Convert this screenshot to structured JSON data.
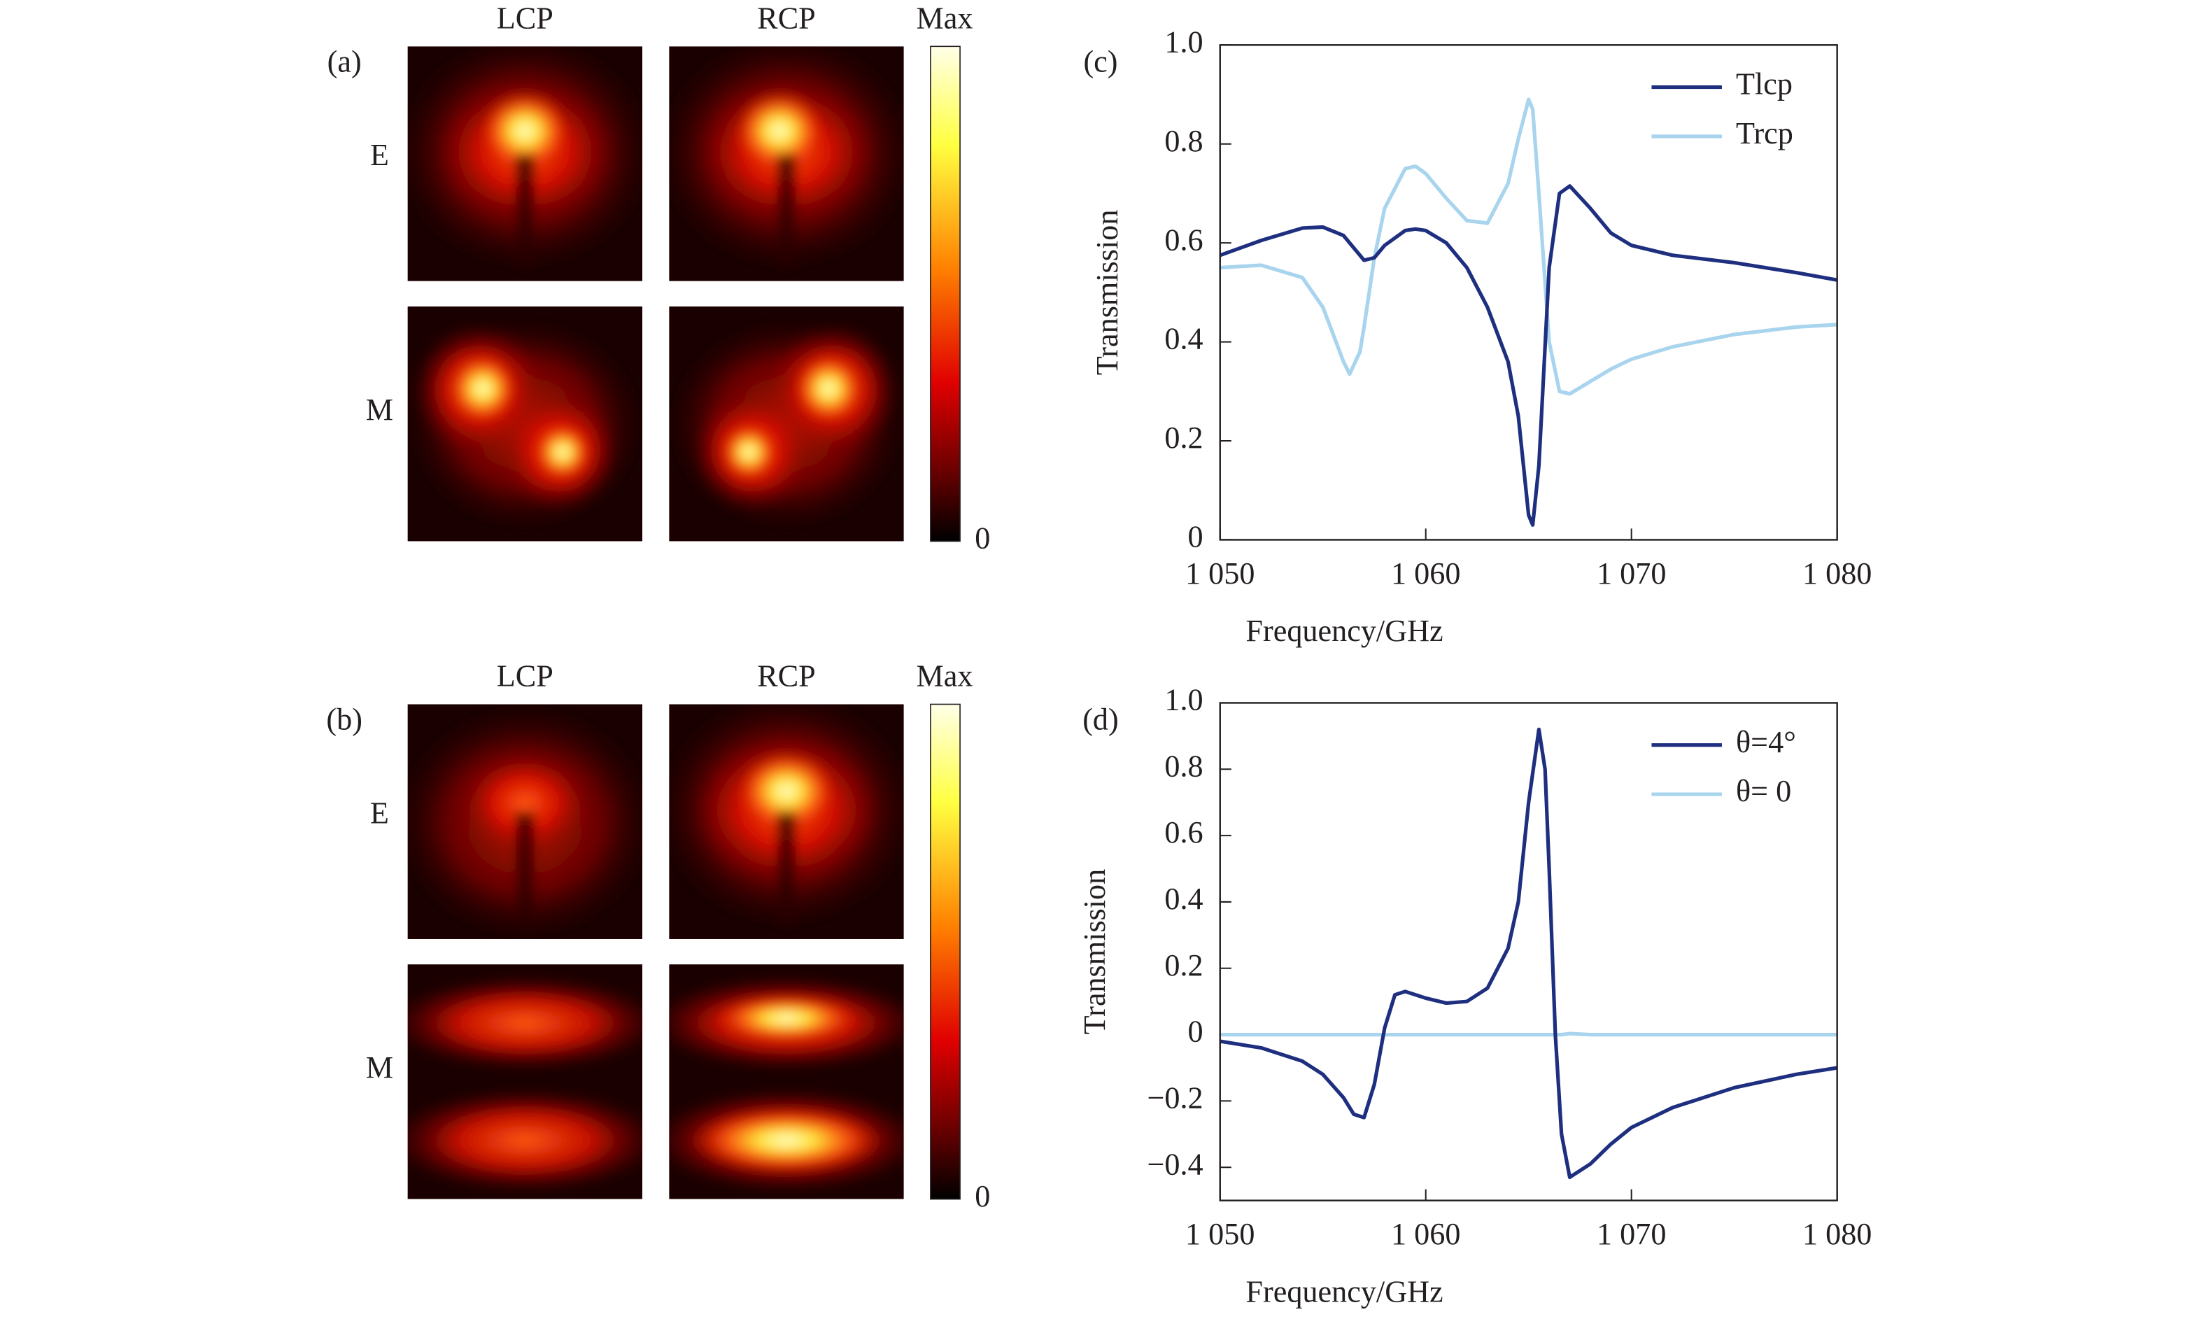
{
  "figure_panels": [
    {
      "label": "(a)",
      "columns": [
        "LCP",
        "RCP"
      ],
      "rows": [
        "E",
        "M"
      ],
      "colorbar_labels": [
        "Max",
        0
      ]
    },
    {
      "label": "(b)",
      "columns": [
        "LCP",
        "RCP"
      ],
      "rows": [
        "E",
        "M"
      ],
      "colorbar_labels": [
        "Max",
        0
      ]
    }
  ],
  "chart_data": [
    {
      "type": "line",
      "panel_label": "(c)",
      "x_label": "Frequency/GHz",
      "y_label": "Transmission",
      "x": [
        1050,
        1052,
        1054,
        1055,
        1056,
        1056.3,
        1056.8,
        1057,
        1057.5,
        1058,
        1059,
        1059.5,
        1060,
        1061,
        1062,
        1063,
        1064,
        1064.5,
        1065,
        1065.2,
        1065.5,
        1066,
        1066.5,
        1067,
        1068,
        1069,
        1070,
        1072,
        1075,
        1078,
        1080
      ],
      "series": [
        {
          "name": "Tlcp",
          "color": "#1f2f7f",
          "values": [
            0.575,
            0.605,
            0.63,
            0.632,
            0.615,
            0.6,
            0.575,
            0.565,
            0.57,
            0.595,
            0.625,
            0.628,
            0.625,
            0.6,
            0.55,
            0.47,
            0.36,
            0.25,
            0.05,
            0.03,
            0.15,
            0.55,
            0.7,
            0.715,
            0.67,
            0.62,
            0.595,
            0.575,
            0.56,
            0.54,
            0.525
          ]
        },
        {
          "name": "Trcp",
          "color": "#a8d4ee",
          "values": [
            0.55,
            0.555,
            0.53,
            0.47,
            0.36,
            0.335,
            0.38,
            0.43,
            0.57,
            0.67,
            0.75,
            0.755,
            0.74,
            0.69,
            0.645,
            0.64,
            0.72,
            0.81,
            0.89,
            0.87,
            0.7,
            0.4,
            0.3,
            0.295,
            0.32,
            0.345,
            0.365,
            0.39,
            0.415,
            0.43,
            0.435
          ]
        }
      ],
      "xlim": [
        1050,
        1080
      ],
      "xticks": [
        {
          "value": 1050,
          "label": "1 050"
        },
        {
          "value": 1060,
          "label": "1 060"
        },
        {
          "value": 1070,
          "label": "1 070"
        },
        {
          "value": 1080,
          "label": "1 080"
        }
      ],
      "ylim": [
        0,
        1
      ],
      "yticks": [
        0,
        0.2,
        0.4,
        0.6,
        0.8,
        {
          "value": 1,
          "label": "1.0"
        }
      ],
      "legend": "upper right"
    },
    {
      "type": "line",
      "panel_label": "(d)",
      "x_label": "Frequency/GHz",
      "y_label": "Transmission",
      "x": [
        1050,
        1052,
        1054,
        1055,
        1056,
        1056.5,
        1057,
        1057.5,
        1058,
        1058.5,
        1059,
        1060,
        1061,
        1062,
        1063,
        1064,
        1064.5,
        1065,
        1065.5,
        1065.8,
        1066,
        1066.3,
        1066.6,
        1067,
        1068,
        1069,
        1070,
        1072,
        1075,
        1078,
        1080
      ],
      "series": [
        {
          "name": "θ=4°",
          "color": "#1f2f7f",
          "values": [
            -0.02,
            -0.04,
            -0.08,
            -0.12,
            -0.19,
            -0.24,
            -0.25,
            -0.15,
            0.02,
            0.12,
            0.13,
            0.11,
            0.095,
            0.1,
            0.14,
            0.26,
            0.4,
            0.7,
            0.92,
            0.8,
            0.5,
            0.0,
            -0.3,
            -0.43,
            -0.39,
            -0.33,
            -0.28,
            -0.22,
            -0.16,
            -0.12,
            -0.1
          ]
        },
        {
          "name": "θ= 0",
          "color": "#a8d4ee",
          "values": [
            0,
            0,
            0,
            0,
            0,
            0,
            0,
            0,
            0,
            0,
            0,
            0,
            0,
            0,
            0,
            0,
            0,
            0,
            0,
            0,
            0,
            0,
            0,
            0.003,
            0,
            0,
            0,
            0,
            0,
            0,
            0
          ]
        }
      ],
      "xlim": [
        1050,
        1080
      ],
      "xticks": [
        {
          "value": 1050,
          "label": "1 050"
        },
        {
          "value": 1060,
          "label": "1 060"
        },
        {
          "value": 1070,
          "label": "1 070"
        },
        {
          "value": 1080,
          "label": "1 080"
        }
      ],
      "ylim": [
        -0.5,
        1
      ],
      "yticks": [
        {
          "value": -0.4,
          "label": "−0.4"
        },
        {
          "value": -0.2,
          "label": "−0.2"
        },
        0,
        0.2,
        0.4,
        0.6,
        0.8,
        {
          "value": 1,
          "label": "1.0"
        }
      ],
      "legend": "upper right"
    }
  ]
}
